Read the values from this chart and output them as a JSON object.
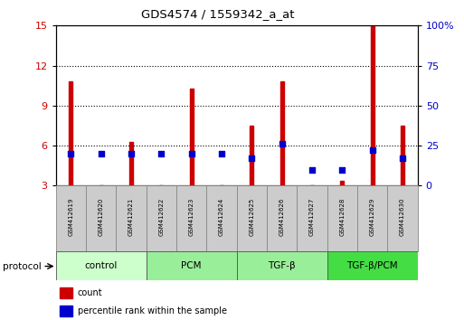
{
  "title": "GDS4574 / 1559342_a_at",
  "samples": [
    "GSM412619",
    "GSM412620",
    "GSM412621",
    "GSM412622",
    "GSM412623",
    "GSM412624",
    "GSM412625",
    "GSM412626",
    "GSM412627",
    "GSM412628",
    "GSM412629",
    "GSM412630"
  ],
  "count_values": [
    10.8,
    3.05,
    6.3,
    3.05,
    10.3,
    3.05,
    7.5,
    10.8,
    3.05,
    3.35,
    15.0,
    7.5
  ],
  "percentile_values": [
    20,
    20,
    20,
    20,
    20,
    20,
    17,
    26,
    10,
    10,
    22,
    17
  ],
  "count_base": 3.0,
  "ylim_left": [
    3,
    15
  ],
  "ylim_right": [
    0,
    100
  ],
  "yticks_left": [
    3,
    6,
    9,
    12,
    15
  ],
  "yticks_right": [
    0,
    25,
    50,
    75,
    100
  ],
  "groups": [
    {
      "label": "control",
      "start": 0,
      "end": 3,
      "color": "#ccffcc"
    },
    {
      "label": "PCM",
      "start": 3,
      "end": 6,
      "color": "#aaeea a"
    },
    {
      "label": "TGF-β",
      "start": 6,
      "end": 9,
      "color": "#aaeea a"
    },
    {
      "label": "TGF-β/PCM",
      "start": 9,
      "end": 12,
      "color": "#44dd44"
    }
  ],
  "bar_color": "#cc0000",
  "dot_color": "#0000cc",
  "bar_width": 0.12,
  "dot_size": 20,
  "grid_color": "#000000",
  "tick_label_color_left": "#cc0000",
  "tick_label_color_right": "#0000cc",
  "sample_bg_color": "#cccccc",
  "sample_border_color": "#888888",
  "group_colors": [
    "#ccffcc",
    "#99ee99",
    "#99ee99",
    "#44dd44"
  ]
}
